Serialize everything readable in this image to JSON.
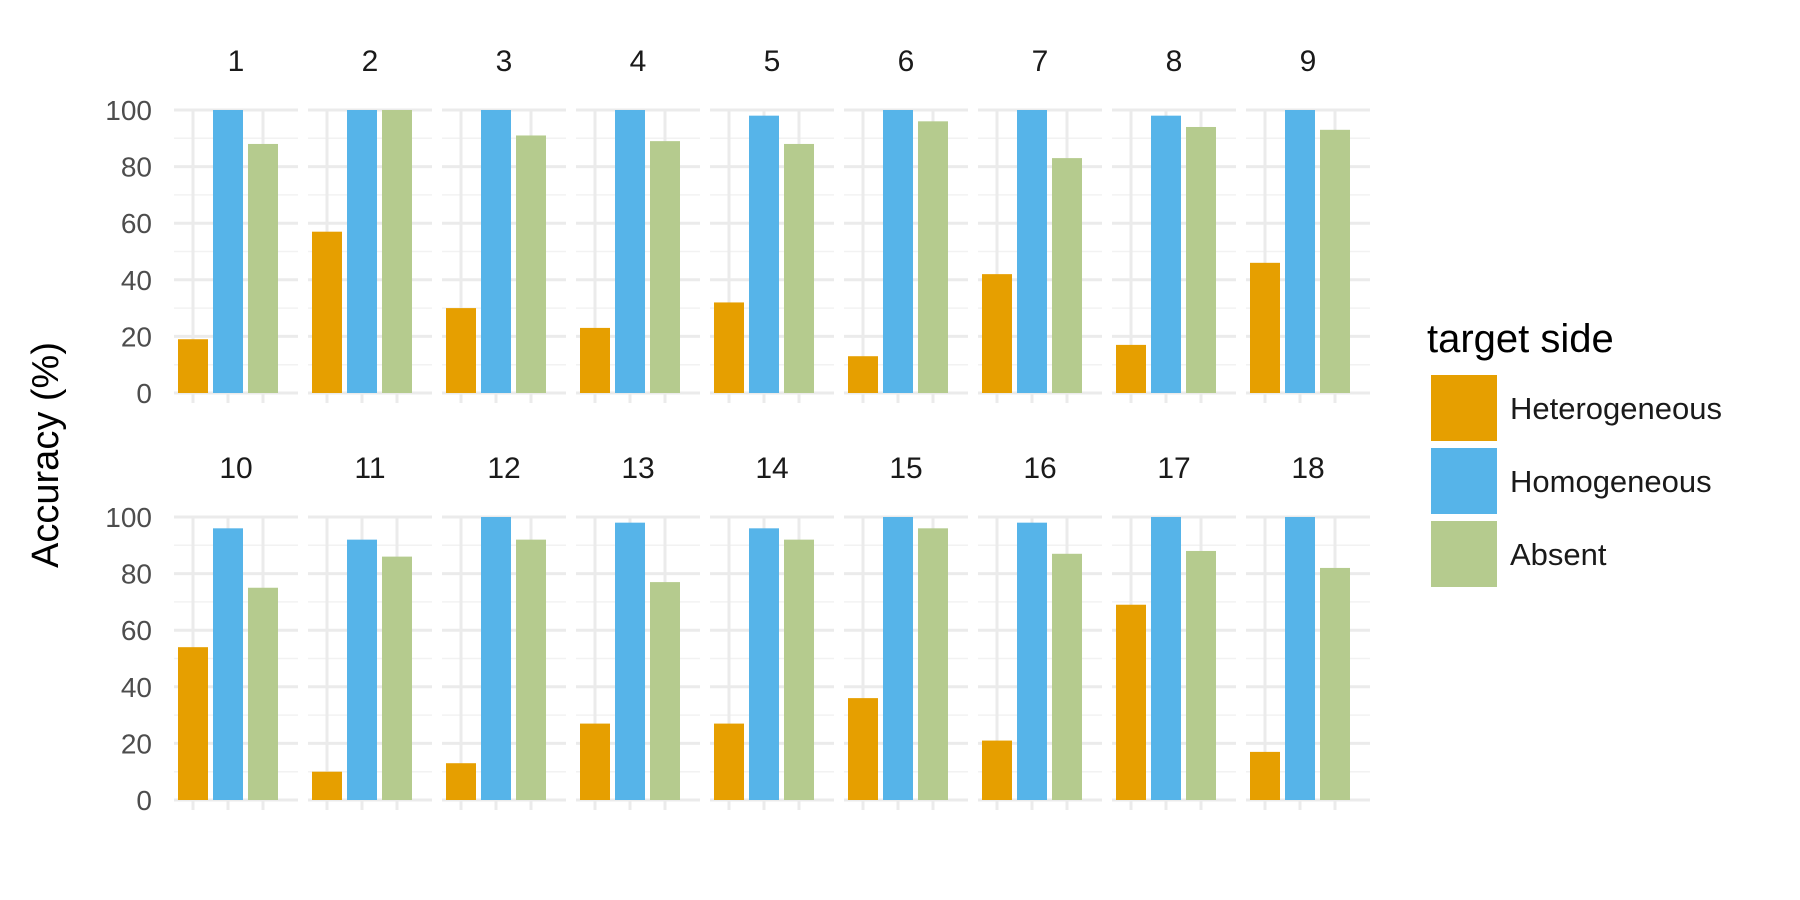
{
  "chart_data": {
    "type": "bar",
    "ylabel": "Accuracy (%)",
    "ylim": [
      0,
      100
    ],
    "yticks": [
      0,
      20,
      40,
      60,
      80,
      100
    ],
    "grid": true,
    "facet_layout": {
      "rows": 2,
      "cols": 9
    },
    "legend": {
      "title": "target side",
      "position": "right",
      "entries": [
        {
          "label": "Heterogeneous",
          "color": "#E69F00"
        },
        {
          "label": "Homogeneous",
          "color": "#56B4E9"
        },
        {
          "label": "Absent",
          "color": "#B5CB8E"
        }
      ]
    },
    "categories": [
      "Heterogeneous",
      "Homogeneous",
      "Absent"
    ],
    "panels": [
      {
        "label": "1",
        "values": [
          19,
          100,
          88
        ]
      },
      {
        "label": "2",
        "values": [
          57,
          100,
          100
        ]
      },
      {
        "label": "3",
        "values": [
          30,
          100,
          91
        ]
      },
      {
        "label": "4",
        "values": [
          23,
          100,
          89
        ]
      },
      {
        "label": "5",
        "values": [
          32,
          98,
          88
        ]
      },
      {
        "label": "6",
        "values": [
          13,
          100,
          96
        ]
      },
      {
        "label": "7",
        "values": [
          42,
          100,
          83
        ]
      },
      {
        "label": "8",
        "values": [
          17,
          98,
          94
        ]
      },
      {
        "label": "9",
        "values": [
          46,
          100,
          93
        ]
      },
      {
        "label": "10",
        "values": [
          54,
          96,
          75
        ]
      },
      {
        "label": "11",
        "values": [
          10,
          92,
          86
        ]
      },
      {
        "label": "12",
        "values": [
          13,
          100,
          92
        ]
      },
      {
        "label": "13",
        "values": [
          27,
          98,
          77
        ]
      },
      {
        "label": "14",
        "values": [
          27,
          96,
          92
        ]
      },
      {
        "label": "15",
        "values": [
          36,
          100,
          96
        ]
      },
      {
        "label": "16",
        "values": [
          21,
          98,
          87
        ]
      },
      {
        "label": "17",
        "values": [
          69,
          100,
          88
        ]
      },
      {
        "label": "18",
        "values": [
          17,
          100,
          82
        ]
      }
    ]
  }
}
